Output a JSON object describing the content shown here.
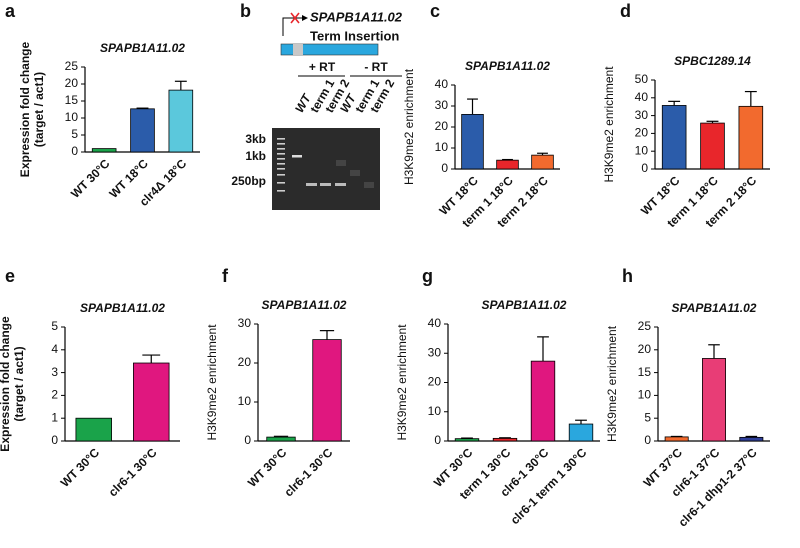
{
  "chart_data": [
    {
      "type": "bar",
      "panel": "a",
      "title": "SPAPB1A11.02",
      "ylabel": [
        "Expression fold change",
        "(target / act1)"
      ],
      "categories": [
        "WT 30°C",
        "WT 18°C",
        "clr4Δ 18°C"
      ],
      "values": [
        1,
        12.7,
        18.2
      ],
      "errors": [
        0,
        0.2,
        2.6
      ],
      "colors": [
        "#1aa34a",
        "#2b5caa",
        "#5bc8dc"
      ],
      "ylim": [
        0,
        25
      ],
      "yticks": [
        0,
        5,
        10,
        15,
        20,
        25
      ]
    },
    {
      "type": "bar",
      "panel": "c",
      "title": "SPAPB1A11.02",
      "ylabel": [
        "H3K9me2 enrichment"
      ],
      "categories": [
        "WT 18°C",
        "term 1 18°C",
        "term 2 18°C"
      ],
      "values": [
        26,
        4.2,
        6.6
      ],
      "errors": [
        7.3,
        0.3,
        0.9
      ],
      "colors": [
        "#2b5caa",
        "#e8262b",
        "#f26a2e"
      ],
      "ylim": [
        0,
        40
      ],
      "yticks": [
        0,
        10,
        20,
        30,
        40
      ]
    },
    {
      "type": "bar",
      "panel": "d",
      "title": "SPBC1289.14",
      "ylabel": [
        "H3K9me2 enrichment"
      ],
      "categories": [
        "WT 18°C",
        "term 1 18°C",
        "term 2 18°C"
      ],
      "values": [
        35.7,
        25.8,
        35.2
      ],
      "errors": [
        2.3,
        1.0,
        8.3
      ],
      "colors": [
        "#2b5caa",
        "#e8262b",
        "#f26a2e"
      ],
      "ylim": [
        0,
        50
      ],
      "yticks": [
        0,
        10,
        20,
        30,
        40,
        50
      ]
    },
    {
      "type": "bar",
      "panel": "e",
      "title": "SPAPB1A11.02",
      "ylabel": [
        "Expression fold change",
        "(target / act1)"
      ],
      "categories": [
        "WT 30°C",
        "clr6-1 30°C"
      ],
      "values": [
        1,
        3.42
      ],
      "errors": [
        0,
        0.35
      ],
      "colors": [
        "#1aa34a",
        "#e0177f"
      ],
      "ylim": [
        0,
        5
      ],
      "yticks": [
        0,
        1,
        2,
        3,
        4,
        5
      ]
    },
    {
      "type": "bar",
      "panel": "f",
      "title": "SPAPB1A11.02",
      "ylabel": [
        "H3K9me2 enrichment"
      ],
      "categories": [
        "WT 30°C",
        "clr6-1 30°C"
      ],
      "values": [
        1,
        26
      ],
      "errors": [
        0.2,
        2.3
      ],
      "colors": [
        "#1aa34a",
        "#e0177f"
      ],
      "ylim": [
        0,
        30
      ],
      "yticks": [
        0,
        10,
        20,
        30
      ]
    },
    {
      "type": "bar",
      "panel": "g",
      "title": "SPAPB1A11.02",
      "ylabel": [
        "H3K9me2 enrichment"
      ],
      "categories": [
        "WT 30°C",
        "term 1 30°C",
        "clr6-1 30°C",
        "clr6-1 term 1 30°C"
      ],
      "values": [
        0.8,
        0.9,
        27.3,
        5.8
      ],
      "errors": [
        0.2,
        0.2,
        8.3,
        1.3
      ],
      "colors": [
        "#1aa34a",
        "#e8262b",
        "#e0177f",
        "#2aa7de"
      ],
      "ylim": [
        0,
        40
      ],
      "yticks": [
        0,
        10,
        20,
        30,
        40
      ]
    },
    {
      "type": "bar",
      "panel": "h",
      "title": "SPAPB1A11.02",
      "ylabel": [
        "H3K9me2 enrichment"
      ],
      "categories": [
        "WT 37°C",
        "clr6-1 37°C",
        "clr6-1 dhp1-2 37°C"
      ],
      "values": [
        0.9,
        18.1,
        0.8
      ],
      "errors": [
        0.1,
        3.0,
        0.2
      ],
      "colors": [
        "#f26a2e",
        "#e83d76",
        "#2f3f9a"
      ],
      "ylim": [
        0,
        25
      ],
      "yticks": [
        0,
        5,
        10,
        15,
        20,
        25
      ]
    }
  ],
  "gel": {
    "panel": "b",
    "gene": "SPAPB1A11.02",
    "construct": "Term Insertion",
    "groups": [
      "+ RT",
      "- RT"
    ],
    "lanes": [
      "WT",
      "term 1",
      "term 2",
      "WT",
      "term 1",
      "term 2"
    ],
    "markers": [
      "3kb",
      "1kb",
      "250bp"
    ]
  }
}
